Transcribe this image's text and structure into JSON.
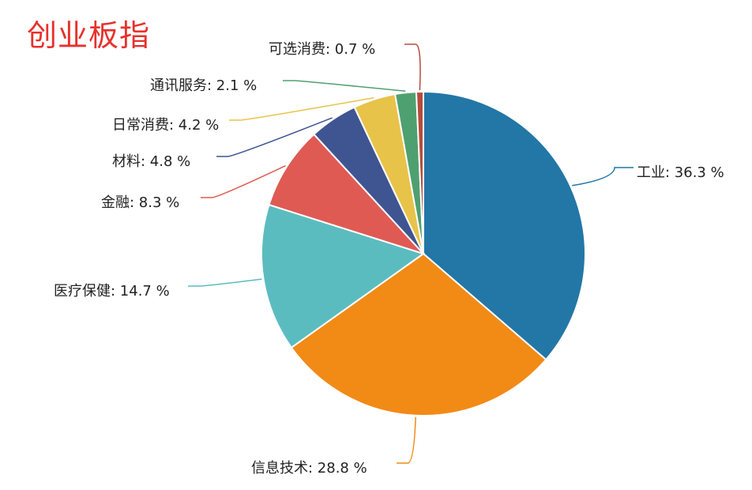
{
  "chart_data": {
    "type": "pie",
    "title": "创业板指",
    "start_angle": "top",
    "direction": "clockwise",
    "slices": [
      {
        "name": "工业",
        "value": 36.3,
        "label": "工业: 36.3 %",
        "color": "#2277a6"
      },
      {
        "name": "信息技术",
        "value": 28.8,
        "label": "信息技术: 28.8 %",
        "color": "#f28a16"
      },
      {
        "name": "医疗保健",
        "value": 14.7,
        "label": "医疗保健: 14.7 %",
        "color": "#5bbcc0"
      },
      {
        "name": "金融",
        "value": 8.3,
        "label": "金融: 8.3 %",
        "color": "#e05a54"
      },
      {
        "name": "材料",
        "value": 4.8,
        "label": "材料: 4.8 %",
        "color": "#3f5592"
      },
      {
        "name": "日常消费",
        "value": 4.2,
        "label": "日常消费: 4.2 %",
        "color": "#e8c34a"
      },
      {
        "name": "通讯服务",
        "value": 2.1,
        "label": "通讯服务: 2.1 %",
        "color": "#4fa070"
      },
      {
        "name": "可选消费",
        "value": 0.7,
        "label": "可选消费: 0.7 %",
        "color": "#b54c3e"
      }
    ]
  }
}
